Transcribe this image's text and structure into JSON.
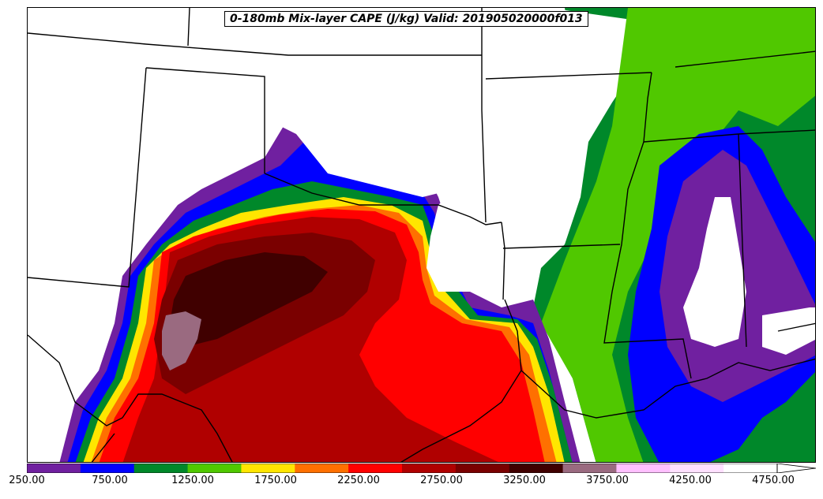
{
  "title": "0-180mb Mix-layer CAPE (J/kg) Valid: 201905020000f013",
  "colorbar": {
    "ticks": [
      "250.00",
      "750.00",
      "1250.00",
      "1750.00",
      "2250.00",
      "2750.00",
      "3250.00",
      "3750.00",
      "4250.00",
      "4750.00"
    ],
    "colors": [
      "#7020a0",
      "#0000ff",
      "#00882a",
      "#50c800",
      "#ffe600",
      "#ff7000",
      "#ff0000",
      "#b00000",
      "#7a0000",
      "#400000",
      "#9a6a80",
      "#ffc0ff",
      "#ffe0ff",
      "#ffffff"
    ],
    "extend": "max"
  }
}
